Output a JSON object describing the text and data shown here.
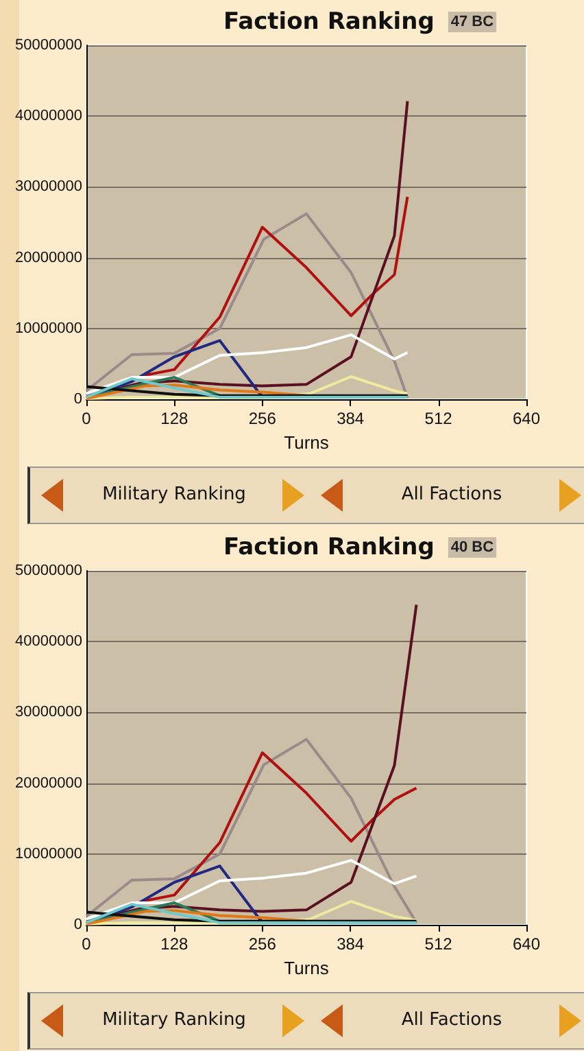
{
  "chart_data": [
    {
      "type": "line",
      "title": "Faction Ranking",
      "subtitle": "47 BC",
      "xlabel": "Turns",
      "xlim": [
        0,
        640
      ],
      "xticks": [
        0,
        128,
        256,
        384,
        512,
        640
      ],
      "ylim": [
        0,
        50000000
      ],
      "yticks": [
        0,
        10000000,
        20000000,
        30000000,
        40000000,
        50000000
      ],
      "grid": "y",
      "annotations": [
        "Military Ranking",
        "All Factions"
      ],
      "series": [
        {
          "color": "#9c8a8a",
          "x": [
            0,
            66,
            128,
            194,
            258,
            320,
            385,
            448,
            467
          ],
          "values": [
            1200000,
            6300000,
            6500000,
            10000000,
            22600000,
            26200000,
            17900000,
            5400000,
            200000
          ]
        },
        {
          "color": "#b01010",
          "x": [
            80,
            128,
            194,
            256,
            320,
            385,
            418,
            448,
            467
          ],
          "values": [
            3300000,
            4200000,
            11600000,
            24300000,
            18600000,
            11800000,
            15000000,
            17600000,
            28600000
          ]
        },
        {
          "color": "#5a1020",
          "x": [
            0,
            80,
            128,
            194,
            256,
            320,
            385,
            448,
            467
          ],
          "values": [
            500000,
            2300000,
            2600000,
            2100000,
            1900000,
            2100000,
            6000000,
            23100000,
            42100000
          ]
        },
        {
          "color": "#202880",
          "x": [
            0,
            66,
            128,
            194,
            252,
            259
          ],
          "values": [
            200000,
            2500000,
            6000000,
            8300000,
            800000,
            200000
          ]
        },
        {
          "color": "#ffffff",
          "x": [
            0,
            66,
            128,
            194,
            258,
            320,
            385,
            448,
            467
          ],
          "values": [
            800000,
            3100000,
            3100000,
            6200000,
            6600000,
            7300000,
            9100000,
            5700000,
            6600000
          ]
        },
        {
          "color": "#f0eaa0",
          "x": [
            0,
            66,
            128,
            194,
            258,
            325,
            385,
            448,
            467
          ],
          "values": [
            100000,
            300000,
            300000,
            200000,
            200000,
            800000,
            3200000,
            1200000,
            800000
          ]
        },
        {
          "color": "#2a7a5a",
          "x": [
            0,
            66,
            128,
            194
          ],
          "values": [
            200000,
            1800000,
            3100000,
            500000
          ]
        },
        {
          "color": "#e07818",
          "x": [
            0,
            86,
            128,
            194,
            259,
            320
          ],
          "values": [
            100000,
            1900000,
            2000000,
            1300000,
            1000000,
            500000
          ]
        },
        {
          "color": "#101010",
          "x": [
            0,
            66,
            128,
            194,
            258,
            320,
            385,
            448,
            467
          ],
          "values": [
            1800000,
            1200000,
            700000,
            500000,
            500000,
            500000,
            500000,
            500000,
            500000
          ]
        },
        {
          "color": "#70c8c8",
          "x": [
            0,
            66,
            128,
            194,
            258,
            320,
            385,
            448,
            467
          ],
          "values": [
            300000,
            2900000,
            1600000,
            300000,
            300000,
            300000,
            300000,
            300000,
            300000
          ]
        }
      ]
    },
    {
      "type": "line",
      "title": "Faction Ranking",
      "subtitle": "40 BC",
      "xlabel": "Turns",
      "xlim": [
        0,
        640
      ],
      "xticks": [
        0,
        128,
        256,
        384,
        512,
        640
      ],
      "ylim": [
        0,
        50000000
      ],
      "yticks": [
        0,
        10000000,
        20000000,
        30000000,
        40000000,
        50000000
      ],
      "grid": "y",
      "annotations": [
        "Military Ranking",
        "All Factions"
      ],
      "series": [
        {
          "color": "#9c8a8a",
          "x": [
            0,
            66,
            128,
            194,
            258,
            320,
            385,
            448,
            480
          ],
          "values": [
            1200000,
            6300000,
            6500000,
            10000000,
            22600000,
            26200000,
            17900000,
            5400000,
            300000
          ]
        },
        {
          "color": "#b01010",
          "x": [
            80,
            128,
            194,
            256,
            320,
            385,
            418,
            448,
            480
          ],
          "values": [
            3300000,
            4200000,
            11600000,
            24300000,
            18600000,
            11800000,
            15000000,
            17700000,
            19300000
          ]
        },
        {
          "color": "#5a1020",
          "x": [
            0,
            80,
            128,
            194,
            256,
            320,
            385,
            448,
            480
          ],
          "values": [
            500000,
            2300000,
            2600000,
            2100000,
            1900000,
            2100000,
            6000000,
            22500000,
            45200000
          ]
        },
        {
          "color": "#202880",
          "x": [
            0,
            66,
            128,
            194,
            252,
            259
          ],
          "values": [
            200000,
            2500000,
            6000000,
            8300000,
            800000,
            200000
          ]
        },
        {
          "color": "#ffffff",
          "x": [
            0,
            66,
            128,
            194,
            258,
            320,
            385,
            448,
            480
          ],
          "values": [
            800000,
            3100000,
            3100000,
            6200000,
            6600000,
            7300000,
            9100000,
            5800000,
            6900000
          ]
        },
        {
          "color": "#f0eaa0",
          "x": [
            0,
            66,
            128,
            194,
            258,
            325,
            385,
            448,
            480
          ],
          "values": [
            100000,
            300000,
            300000,
            200000,
            200000,
            800000,
            3300000,
            1200000,
            600000
          ]
        },
        {
          "color": "#2a7a5a",
          "x": [
            0,
            66,
            128,
            194
          ],
          "values": [
            200000,
            1800000,
            3100000,
            500000
          ]
        },
        {
          "color": "#e07818",
          "x": [
            0,
            86,
            128,
            194,
            259,
            320
          ],
          "values": [
            100000,
            1900000,
            2000000,
            1300000,
            1000000,
            500000
          ]
        },
        {
          "color": "#101010",
          "x": [
            0,
            66,
            128,
            194,
            258,
            320,
            385,
            448,
            480
          ],
          "values": [
            1800000,
            1200000,
            700000,
            500000,
            500000,
            500000,
            500000,
            500000,
            500000
          ]
        },
        {
          "color": "#70c8c8",
          "x": [
            0,
            66,
            128,
            194,
            258,
            320,
            385,
            448,
            480
          ],
          "values": [
            300000,
            2900000,
            1600000,
            300000,
            300000,
            300000,
            300000,
            300000,
            300000
          ]
        }
      ]
    }
  ]
}
